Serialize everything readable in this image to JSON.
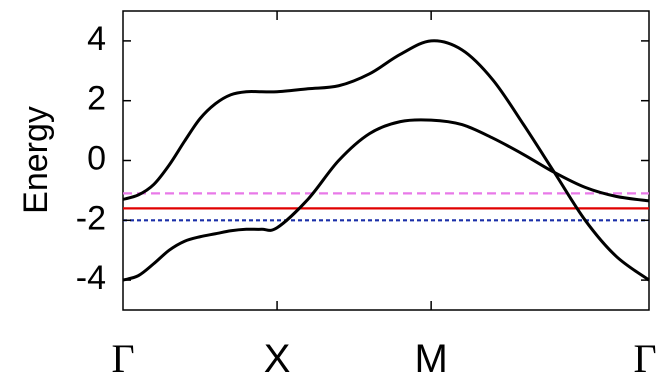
{
  "chart_data": {
    "type": "line",
    "title": "",
    "xlabel": "",
    "ylabel": "Energy",
    "ylim": [
      -5,
      5
    ],
    "yticks": [
      -4,
      -2,
      0,
      2,
      4
    ],
    "xticks": [
      {
        "label": "Γ",
        "x": 0
      },
      {
        "label": "X",
        "x": 1
      },
      {
        "label": "M",
        "x": 2
      },
      {
        "label": "Γ",
        "x": 3.414
      }
    ],
    "xlim": [
      0,
      3.414
    ],
    "grid": false,
    "series": [
      {
        "color": "#000000",
        "style": "solid",
        "x": [
          0,
          0.1,
          0.2,
          0.3,
          0.4,
          0.5,
          0.6,
          0.7,
          0.8,
          0.9,
          1.0,
          1.2,
          1.4,
          1.6,
          1.8,
          2.0,
          2.2,
          2.4,
          2.6,
          2.8,
          3.0,
          3.2,
          3.414
        ],
        "y": [
          -1.3,
          -1.15,
          -0.8,
          -0.15,
          0.65,
          1.4,
          1.9,
          2.2,
          2.3,
          2.3,
          2.3,
          2.4,
          2.5,
          2.9,
          3.55,
          4.0,
          3.7,
          2.7,
          1.2,
          -0.4,
          -2.0,
          -3.2,
          -4.0
        ]
      },
      {
        "color": "#000000",
        "style": "solid",
        "x": [
          0,
          0.1,
          0.2,
          0.3,
          0.4,
          0.5,
          0.6,
          0.7,
          0.8,
          0.9,
          1.0,
          1.2,
          1.4,
          1.6,
          1.8,
          2.0,
          2.2,
          2.4,
          2.6,
          2.8,
          3.0,
          3.2,
          3.414
        ],
        "y": [
          -4.0,
          -3.85,
          -3.45,
          -3.0,
          -2.7,
          -2.55,
          -2.45,
          -2.35,
          -2.3,
          -2.3,
          -2.25,
          -1.3,
          0.0,
          0.9,
          1.3,
          1.35,
          1.2,
          0.75,
          0.2,
          -0.4,
          -0.9,
          -1.2,
          -1.35
        ]
      }
    ],
    "hlines": [
      {
        "y": -1.1,
        "color": "#e879e8",
        "style": "dashed"
      },
      {
        "y": -1.6,
        "color": "#e00000",
        "style": "solid"
      },
      {
        "y": -2.0,
        "color": "#1a2fa8",
        "style": "dotted"
      }
    ]
  }
}
